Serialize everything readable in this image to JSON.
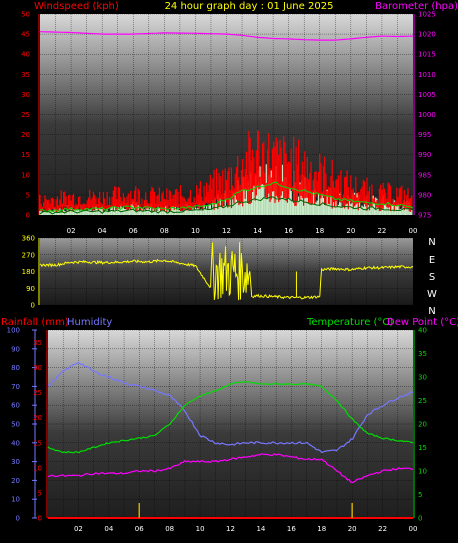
{
  "header": {
    "title": "24 hour graph day : 01 June 2025",
    "left_label": "Windspeed (kph)",
    "right_label": "Barometer (hpa)"
  },
  "colors": {
    "wind": "#ff0000",
    "gust_band": "#00cc00",
    "barometer": "#ff00ff",
    "direction": "#ffff00",
    "humidity": "#7777ff",
    "temperature": "#00dd00",
    "dewpoint": "#ff00ff",
    "rain": "#ff0000",
    "rain_rate": "#ccaa00",
    "text_yellow": "#ffff00",
    "text_red": "#ff0000"
  },
  "x_ticks": [
    "02",
    "04",
    "06",
    "08",
    "10",
    "12",
    "14",
    "16",
    "18",
    "20",
    "22",
    "00"
  ],
  "chart_data": [
    {
      "type": "line",
      "title": "24 hour graph day : 01 June 2025",
      "x_unit": "hour of day",
      "y_left_label": "Windspeed (kph)",
      "y_left_ticks": [
        "0",
        "5",
        "10",
        "15",
        "20",
        "25",
        "30",
        "35",
        "40",
        "45",
        "50"
      ],
      "y_left_range": [
        0,
        50
      ],
      "y_right_label": "Barometer (hpa)",
      "y_right_ticks": [
        "975",
        "980",
        "985",
        "990",
        "995",
        "1000",
        "1005",
        "1010",
        "1015",
        "1020",
        "1025"
      ],
      "y_right_range": [
        975,
        1025
      ],
      "grid": true,
      "series": [
        {
          "name": "Barometer (hpa)",
          "axis": "right",
          "x": [
            0,
            2,
            4,
            6,
            8,
            10,
            12,
            13,
            14,
            15,
            16,
            17,
            18,
            19,
            20,
            21,
            22,
            23,
            24
          ],
          "values": [
            1020.6,
            1020.4,
            1020.0,
            1020.0,
            1020.3,
            1020.2,
            1020.0,
            1019.7,
            1019.2,
            1018.9,
            1018.8,
            1018.6,
            1018.5,
            1018.5,
            1018.8,
            1019.2,
            1019.5,
            1019.4,
            1019.5
          ]
        },
        {
          "name": "Windspeed (kph)",
          "axis": "left",
          "x": [
            0,
            2,
            4,
            6,
            8,
            10,
            11,
            12,
            13,
            14,
            15,
            16,
            17,
            18,
            19,
            20,
            21,
            22,
            23,
            24
          ],
          "values": [
            4,
            5,
            5,
            6,
            5,
            6,
            8,
            10,
            14,
            18,
            16,
            15,
            14,
            12,
            10,
            8,
            7,
            6,
            6,
            5
          ]
        },
        {
          "name": "Windspeed average",
          "axis": "left",
          "x": [
            0,
            2,
            4,
            6,
            8,
            10,
            11,
            12,
            13,
            14,
            15,
            16,
            17,
            18,
            19,
            20,
            21,
            22,
            23,
            24
          ],
          "values": [
            1,
            1.5,
            1.5,
            2,
            1.5,
            2,
            2.5,
            4,
            6,
            7,
            8,
            7,
            6,
            5,
            4,
            3.5,
            3,
            3,
            2.5,
            2
          ]
        }
      ]
    },
    {
      "type": "scatter",
      "y_left_ticks": [
        "0",
        "90",
        "180",
        "270",
        "360"
      ],
      "y_range": [
        0,
        360
      ],
      "y_right_ticks": [
        "N",
        "W",
        "S",
        "E",
        "N"
      ],
      "series": [
        {
          "name": "Wind direction",
          "x": [
            0,
            1,
            2,
            3,
            4,
            5,
            6,
            7,
            8,
            9,
            10,
            11,
            12,
            12.5,
            13,
            13.5,
            14,
            15,
            16,
            17,
            18,
            18.1,
            19,
            20,
            21,
            22,
            23,
            24
          ],
          "values": [
            215,
            215,
            230,
            232,
            228,
            230,
            235,
            232,
            240,
            225,
            210,
            90,
            40,
            60,
            30,
            45,
            50,
            45,
            40,
            40,
            45,
            190,
            195,
            190,
            200,
            200,
            205,
            205
          ]
        }
      ]
    },
    {
      "type": "line",
      "y_left_label": "Rainfall (mm)",
      "y_left_ticks": [
        "0",
        "5",
        "10",
        "15",
        "20",
        "25",
        "30",
        "35"
      ],
      "y_left_range": [
        0,
        35
      ],
      "y_humidity_label": "Humidity",
      "y_humidity_ticks": [
        "0",
        "10",
        "20",
        "30",
        "40",
        "50",
        "60",
        "70",
        "80",
        "90",
        "100"
      ],
      "y_humidity_range": [
        0,
        100
      ],
      "y_right_label": "Temperature (°C)",
      "y_right2_label": "Dew Point (°C)",
      "y_right_ticks": [
        "0",
        "5",
        "10",
        "15",
        "20",
        "25",
        "30",
        "35",
        "40"
      ],
      "y_right_range": [
        0,
        40
      ],
      "grid": true,
      "series": [
        {
          "name": "Humidity",
          "axis": "humidity",
          "x": [
            0,
            1,
            2,
            3,
            4,
            5,
            6,
            7,
            8,
            9,
            10,
            11,
            12,
            13,
            14,
            15,
            16,
            17,
            18,
            19,
            20,
            21,
            22,
            23,
            24
          ],
          "values": [
            70,
            78,
            83,
            78,
            75,
            72,
            70,
            68,
            65,
            57,
            44,
            40,
            39,
            40,
            40,
            40,
            40,
            40,
            35,
            36,
            42,
            55,
            60,
            64,
            67
          ]
        },
        {
          "name": "Temperature (°C)",
          "axis": "right",
          "x": [
            0,
            1,
            2,
            3,
            4,
            5,
            6,
            7,
            8,
            9,
            10,
            11,
            12,
            13,
            14,
            15,
            16,
            17,
            18,
            19,
            20,
            21,
            22,
            23,
            24
          ],
          "values": [
            15,
            14,
            14,
            15,
            16,
            16.5,
            17,
            17.5,
            20,
            24,
            26,
            27,
            28.5,
            29,
            28.5,
            28.5,
            28.5,
            28.5,
            28,
            25,
            21,
            18,
            17,
            16.5,
            16
          ]
        },
        {
          "name": "Dew Point (°C)",
          "axis": "right",
          "x": [
            0,
            1,
            2,
            3,
            4,
            5,
            6,
            7,
            8,
            9,
            10,
            11,
            12,
            13,
            14,
            15,
            16,
            17,
            18,
            19,
            20,
            21,
            22,
            23,
            24
          ],
          "values": [
            9,
            9,
            9,
            9.5,
            9.5,
            9.5,
            10,
            10,
            10.5,
            12,
            12,
            12,
            12.5,
            13,
            13.5,
            13.5,
            13,
            12.5,
            12.5,
            10,
            7.5,
            9,
            10,
            10.5,
            10.5
          ]
        },
        {
          "name": "Rainfall (mm)",
          "axis": "left",
          "x": [
            0,
            24
          ],
          "values": [
            0,
            0
          ]
        },
        {
          "name": "Rain rate",
          "axis": "left",
          "bars_x": [
            6,
            20
          ],
          "bars_values": [
            3,
            3
          ]
        }
      ]
    }
  ]
}
